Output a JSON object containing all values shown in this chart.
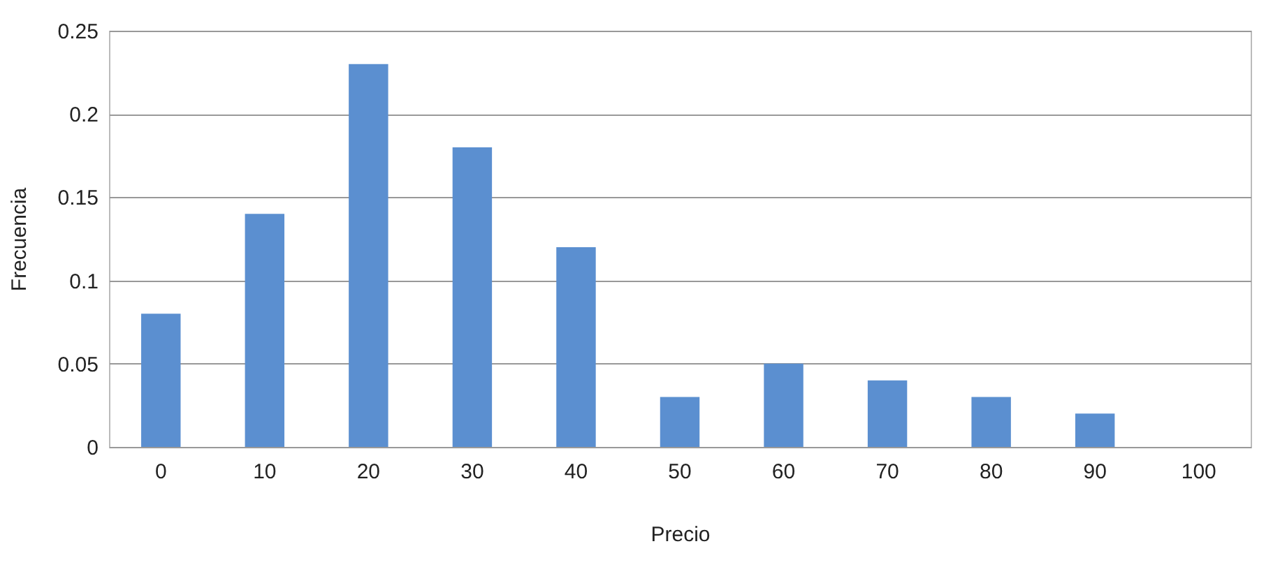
{
  "chart_data": {
    "type": "bar",
    "xlabel": "Precio",
    "ylabel": "Frecuencia",
    "categories": [
      "0",
      "10",
      "20",
      "30",
      "40",
      "50",
      "60",
      "70",
      "80",
      "90",
      "100"
    ],
    "values": [
      0.08,
      0.14,
      0.23,
      0.18,
      0.12,
      0.03,
      0.05,
      0.04,
      0.03,
      0.02,
      null
    ],
    "color": "#5b8fd0",
    "ylim": [
      0,
      0.25
    ],
    "yticks": [
      0,
      0.05,
      0.1,
      0.15,
      0.2,
      0.25
    ],
    "grid": "y"
  }
}
